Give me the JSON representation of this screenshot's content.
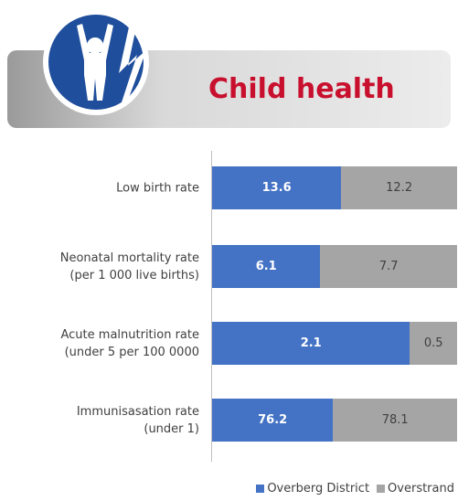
{
  "header": {
    "title": "Child health"
  },
  "chart_data": {
    "type": "bar",
    "orientation": "horizontal",
    "stacking": "percent",
    "categories": [
      "Low birth rate",
      "Neonatal mortality rate\n(per 1 000 live births)",
      "Acute malnutrition rate\n(under 5 per 100 0000",
      "Immunisasation rate\n(under 1)"
    ],
    "series": [
      {
        "name": "Overberg District",
        "color": "#4472c4",
        "values": [
          13.6,
          6.1,
          2.1,
          76.2
        ]
      },
      {
        "name": "Overstrand",
        "color": "#a5a5a5",
        "values": [
          12.2,
          7.7,
          0.5,
          78.1
        ]
      }
    ],
    "legend": "bottom-right"
  }
}
